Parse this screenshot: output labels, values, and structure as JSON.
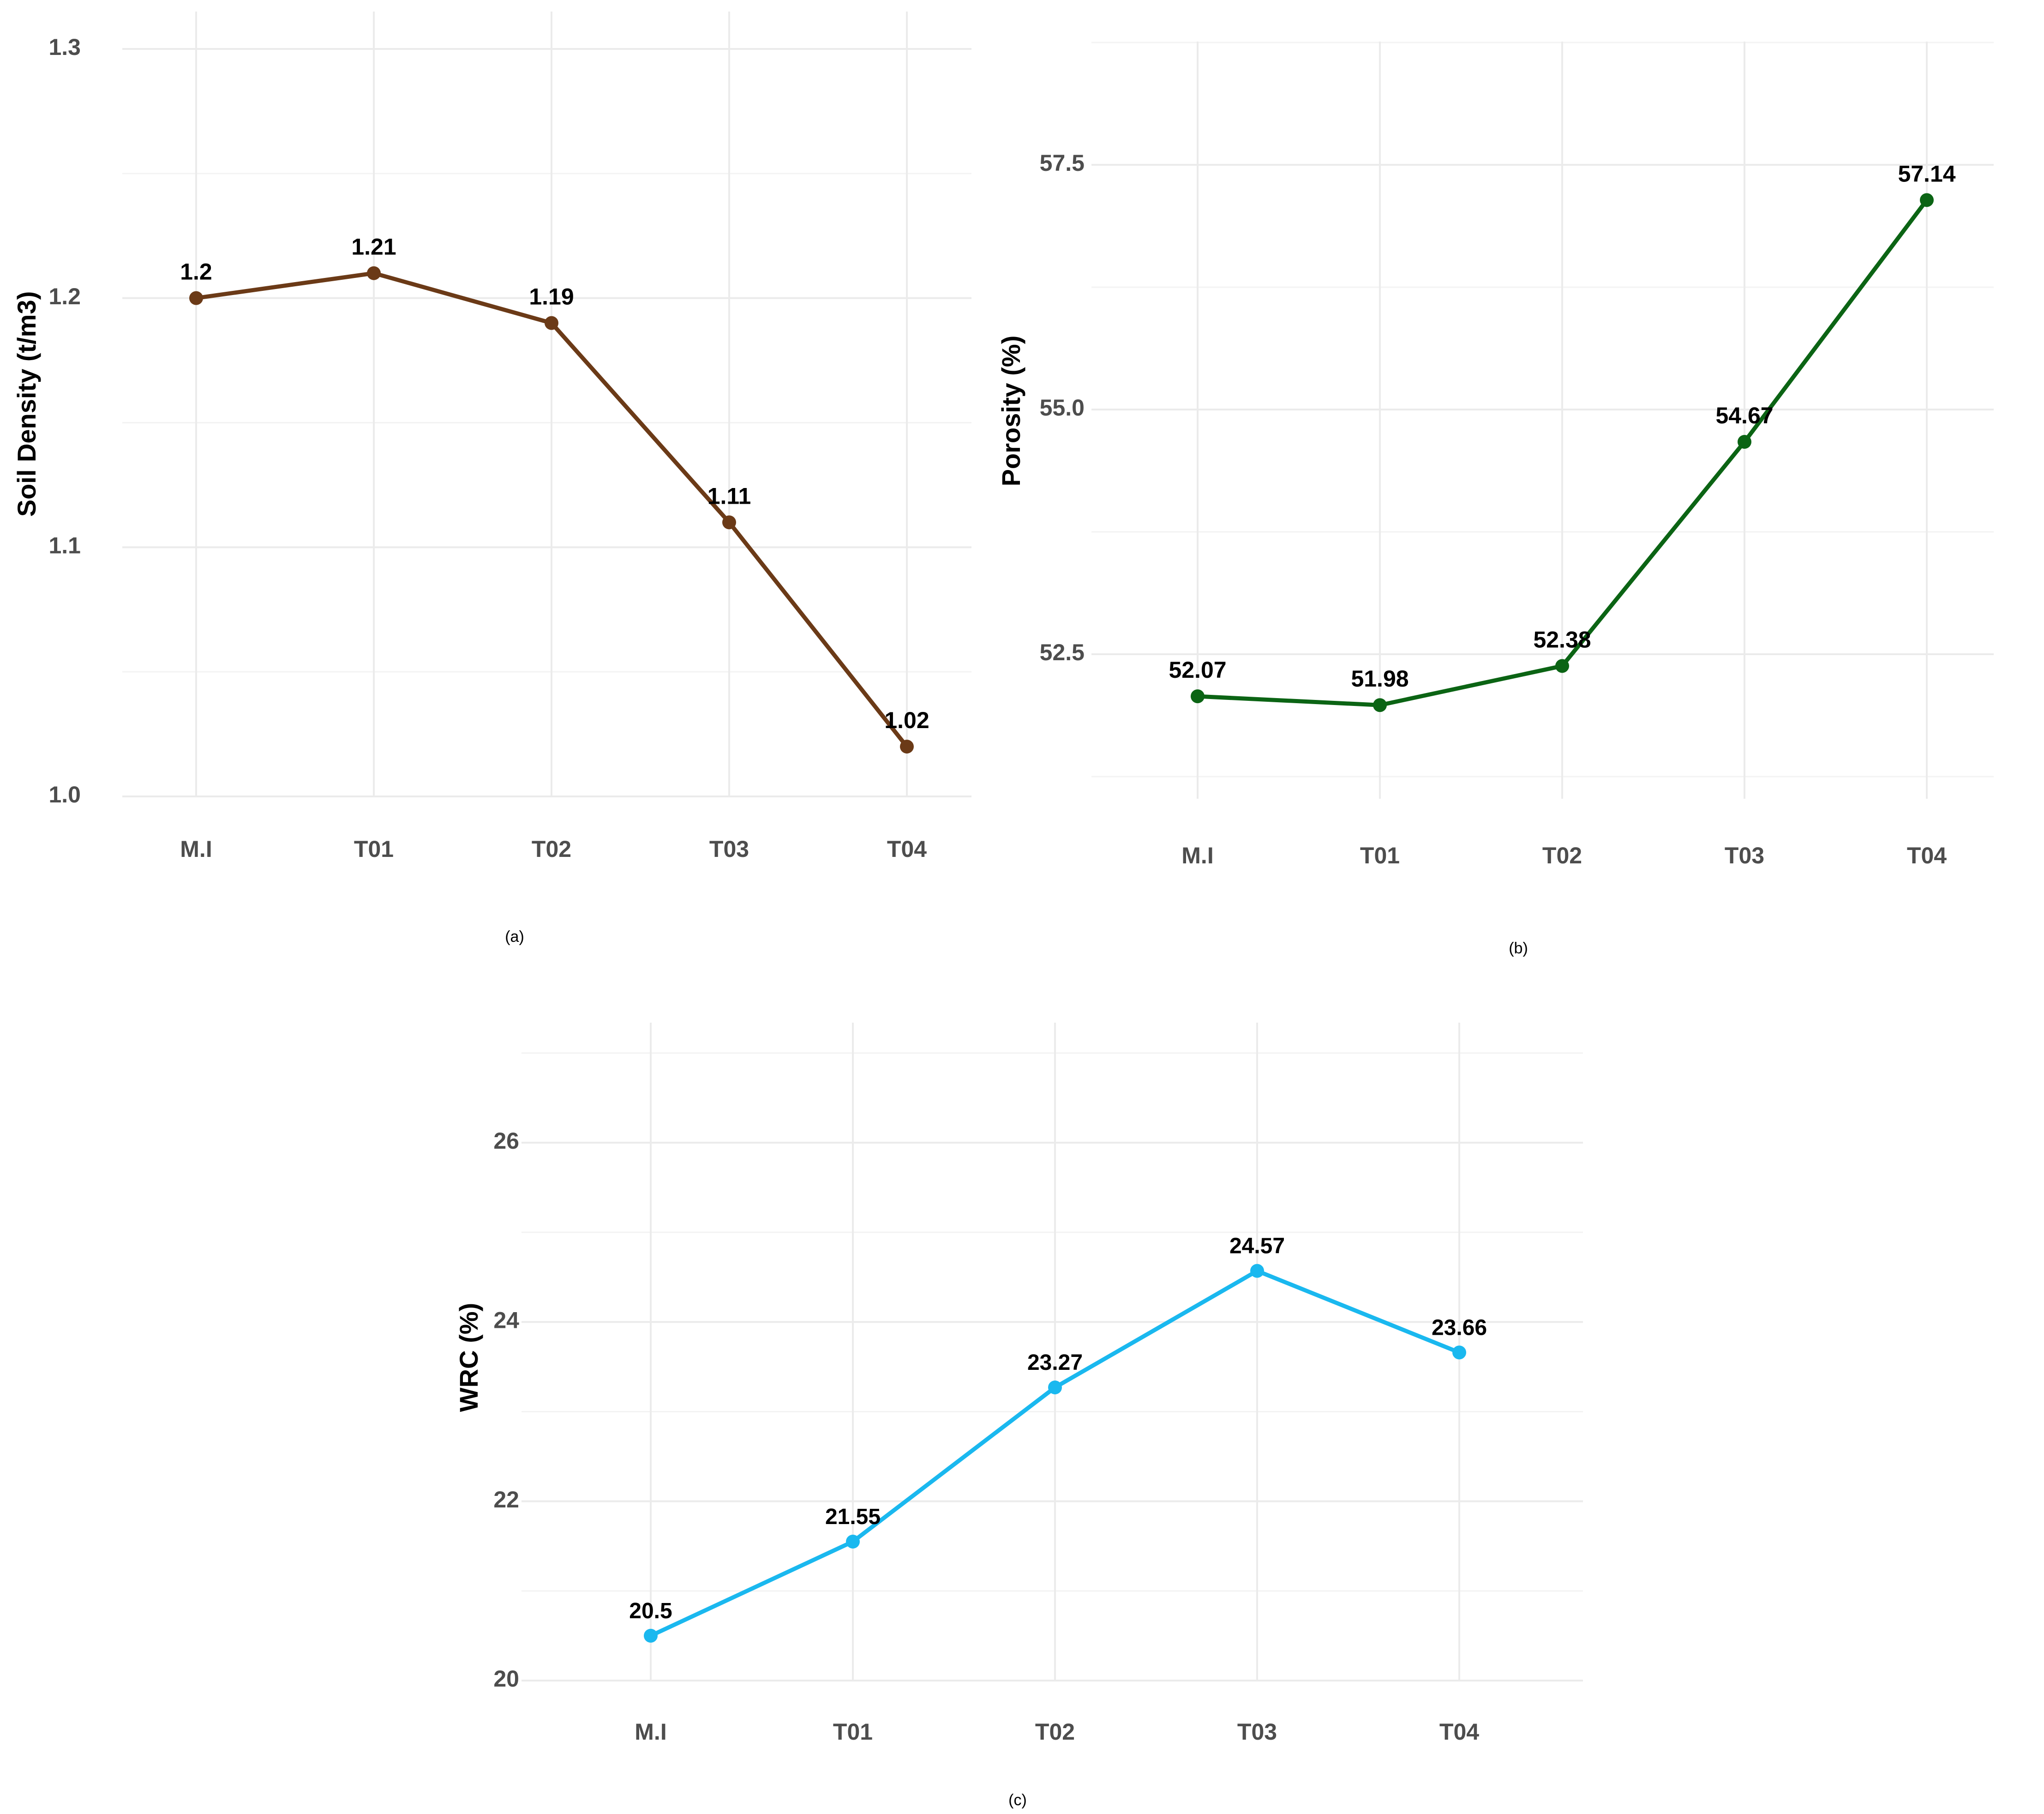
{
  "chart_data": [
    {
      "type": "line",
      "caption": "(a)",
      "ylabel": "Soil Density (t/m3)",
      "xlabel": "",
      "categories": [
        "M.I",
        "T01",
        "T02",
        "T03",
        "T04"
      ],
      "series": [
        {
          "values": [
            1.2,
            1.21,
            1.19,
            1.11,
            1.02
          ],
          "labels": [
            "1.2",
            "1.21",
            "1.19",
            "1.11",
            "1.02"
          ],
          "color": "#6b3a17"
        }
      ],
      "ylim": [
        1.0,
        1.3
      ],
      "yticks": [
        1.0,
        1.1,
        1.2,
        1.3
      ],
      "ytick_labels": [
        "1.0",
        "1.1",
        "1.2",
        "1.3"
      ],
      "grid": true,
      "legend": "none"
    },
    {
      "type": "line",
      "caption": "(b)",
      "ylabel": "Porosity (%)",
      "xlabel": "",
      "categories": [
        "M.I",
        "T01",
        "T02",
        "T03",
        "T04"
      ],
      "series": [
        {
          "values": [
            52.07,
            51.98,
            52.38,
            54.67,
            57.14
          ],
          "labels": [
            "52.07",
            "51.98",
            "52.38",
            "54.67",
            "57.14"
          ],
          "color": "#0b6414"
        }
      ],
      "ylim": [
        50.8,
        58.7
      ],
      "yticks": [
        52.5,
        55.0,
        57.5
      ],
      "ytick_labels": [
        "52.5",
        "55.0",
        "57.5"
      ],
      "grid": true,
      "legend": "none"
    },
    {
      "type": "line",
      "caption": "(c)",
      "ylabel": "WRC (%)",
      "xlabel": "",
      "categories": [
        "M.I",
        "T01",
        "T02",
        "T03",
        "T04"
      ],
      "series": [
        {
          "values": [
            20.5,
            21.55,
            23.27,
            24.57,
            23.66
          ],
          "labels": [
            "20.5",
            "21.55",
            "23.27",
            "24.57",
            "23.66"
          ],
          "color": "#1ab8ef"
        }
      ],
      "ylim": [
        20.0,
        27.3
      ],
      "yticks": [
        20,
        22,
        24,
        26
      ],
      "ytick_labels": [
        "20",
        "22",
        "24",
        "26"
      ],
      "grid": true,
      "legend": "none"
    }
  ]
}
